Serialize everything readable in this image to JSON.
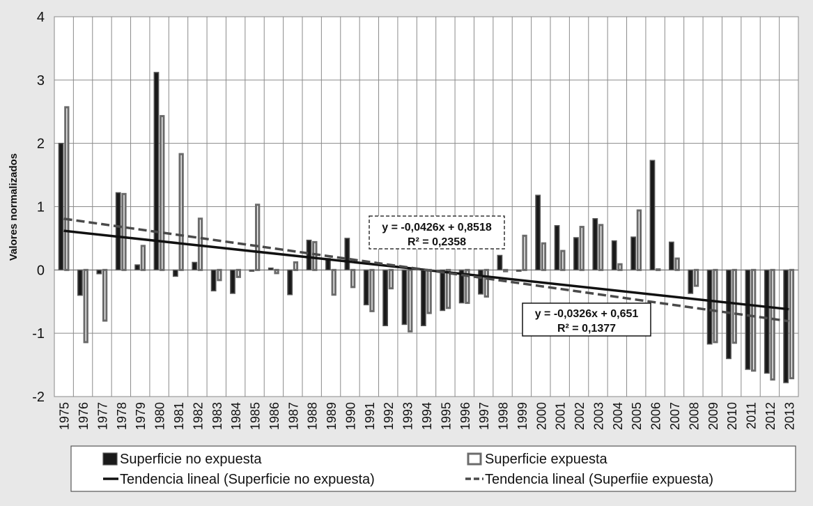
{
  "chart_data": {
    "type": "bar",
    "ylabel": "Valores normalizados",
    "ylim": [
      -2,
      4
    ],
    "yticks": [
      "-2",
      "-1",
      "0",
      "1",
      "2",
      "3",
      "4"
    ],
    "grid": true,
    "legend_position": "bottom",
    "categories": [
      "1975",
      "1976",
      "1977",
      "1978",
      "1979",
      "1980",
      "1981",
      "1982",
      "1983",
      "1984",
      "1985",
      "1986",
      "1987",
      "1988",
      "1989",
      "1990",
      "1991",
      "1992",
      "1993",
      "1994",
      "1995",
      "1996",
      "1997",
      "1998",
      "1999",
      "2000",
      "2001",
      "2002",
      "2003",
      "2004",
      "2005",
      "2006",
      "2007",
      "2008",
      "2009",
      "2010",
      "2011",
      "2012",
      "2013"
    ],
    "series": [
      {
        "name": "Superficie no expuesta",
        "color": "#1a1a1a",
        "values": [
          2.0,
          -0.4,
          -0.06,
          1.22,
          0.08,
          3.12,
          -0.1,
          0.12,
          -0.33,
          -0.37,
          -0.02,
          0.03,
          -0.39,
          0.47,
          0.18,
          0.5,
          -0.55,
          -0.88,
          -0.86,
          -0.88,
          -0.64,
          -0.52,
          -0.38,
          0.23,
          -0.02,
          1.18,
          0.7,
          0.51,
          0.81,
          0.46,
          0.52,
          1.73,
          0.44,
          -0.37,
          -1.17,
          -1.4,
          -1.57,
          -1.63,
          -1.78
        ]
      },
      {
        "name": "Superficie expuesta",
        "color": "#ffffff",
        "values": [
          2.57,
          -1.14,
          -0.8,
          1.2,
          0.38,
          2.43,
          1.83,
          0.81,
          -0.16,
          -0.11,
          1.03,
          -0.05,
          0.12,
          0.44,
          -0.39,
          -0.27,
          -0.65,
          -0.29,
          -0.97,
          -0.68,
          -0.6,
          -0.52,
          -0.42,
          -0.02,
          0.54,
          0.42,
          0.3,
          0.68,
          0.71,
          0.09,
          0.94,
          0.01,
          0.18,
          -0.25,
          -1.14,
          -1.15,
          -1.59,
          -1.73,
          -1.71
        ]
      }
    ],
    "trendlines": [
      {
        "name": "Tendencia lineal (Superficie no expuesta)",
        "slope": -0.0326,
        "intercept": 0.651,
        "style": "solid",
        "equation": "y = -0,0326x + 0,651",
        "r2": "R² = 0,1377"
      },
      {
        "name": "Tendencia lineal (Superfiie expuesta)",
        "slope": -0.0426,
        "intercept": 0.8518,
        "style": "dashed",
        "equation": "y = -0,0426x + 0,8518",
        "r2": "R² = 0,2358"
      }
    ]
  }
}
